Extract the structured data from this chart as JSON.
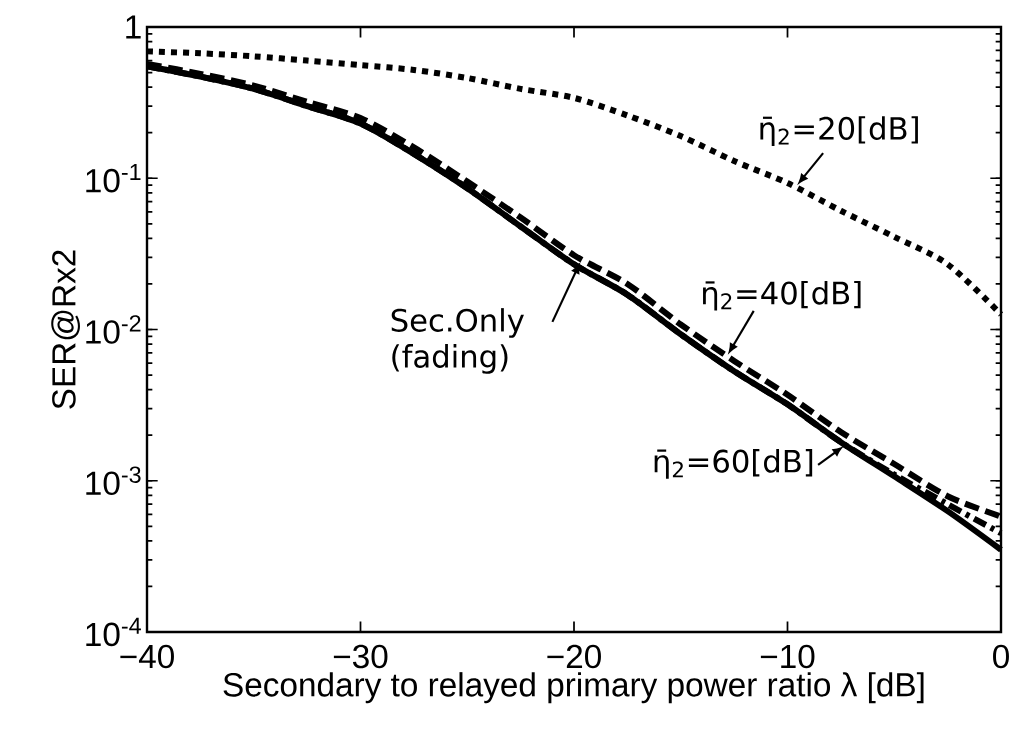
{
  "chart_data": {
    "type": "line",
    "xlabel": "Secondary to relayed primary power ratio λ [dB]",
    "ylabel": "SER@Rx2",
    "x": [
      -40,
      -37.5,
      -35,
      -32.5,
      -30,
      -27.5,
      -25,
      -22.5,
      -20,
      -17.5,
      -15,
      -12.5,
      -10,
      -7.5,
      -5,
      -2.5,
      0
    ],
    "series": [
      {
        "color": "#000000",
        "line_style": "solid",
        "values": [
          0.55,
          0.47,
          0.39,
          0.3,
          0.23,
          0.145,
          0.086,
          0.048,
          0.027,
          0.017,
          0.0093,
          0.0053,
          0.0032,
          0.0018,
          0.00107,
          0.00063,
          0.00035
        ]
      },
      {
        "color": "#000000",
        "line_style": "dotted",
        "values": [
          0.69,
          0.67,
          0.64,
          0.6,
          0.56,
          0.52,
          0.46,
          0.39,
          0.34,
          0.26,
          0.19,
          0.13,
          0.093,
          0.061,
          0.041,
          0.027,
          0.0126
        ]
      },
      {
        "color": "#000000",
        "line_style": "dashed",
        "values": [
          0.57,
          0.49,
          0.41,
          0.32,
          0.25,
          0.16,
          0.095,
          0.055,
          0.031,
          0.02,
          0.0108,
          0.0062,
          0.0037,
          0.0021,
          0.00129,
          0.00079,
          0.00058
        ]
      },
      {
        "color": "#000000",
        "line_style": "dashdot",
        "values": [
          0.55,
          0.47,
          0.39,
          0.3,
          0.23,
          0.145,
          0.086,
          0.048,
          0.027,
          0.017,
          0.0093,
          0.0053,
          0.0032,
          0.0018,
          0.0011,
          0.0007,
          0.00045
        ]
      }
    ],
    "log": true,
    "xlim": [
      -40,
      0
    ],
    "ylim": [
      0.0001,
      1
    ],
    "xticks": [
      {
        "value": -40,
        "label": "−40"
      },
      {
        "value": -30,
        "label": "−30"
      },
      {
        "value": -20,
        "label": "−20"
      },
      {
        "value": -10,
        "label": "−10"
      },
      0
    ],
    "yticks": [
      {
        "value": 0.0001,
        "label": "10$^{-4}$"
      },
      {
        "value": 0.001,
        "label": "10$^{-3}$"
      },
      {
        "value": 0.01,
        "label": "10$^{-2}$"
      },
      {
        "value": 0.1,
        "label": "10$^{-1}$"
      },
      1
    ],
    "annotations": [
      {
        "text": "η̄$_{2}$=20[dB]",
        "x": -9.55,
        "y": 0.09
      },
      {
        "text": "η̄$_{2}$=40[dB]",
        "x": -12.8,
        "y": 0.0068
      },
      {
        "text": "Sec.Only (fading)",
        "x": -19.7,
        "y": 0.028
      },
      {
        "text": "η̄$_{2}$=60[dB]",
        "x": -7.35,
        "y": 0.0017
      }
    ]
  }
}
